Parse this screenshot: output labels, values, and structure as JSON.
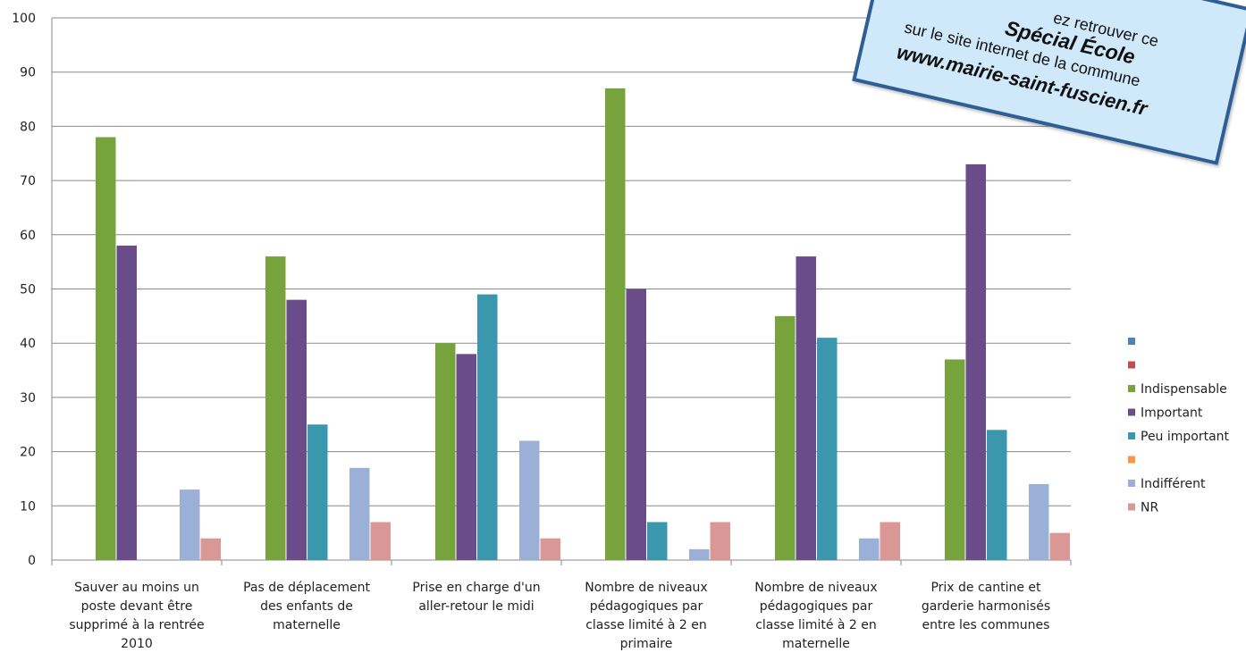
{
  "chart_data": {
    "type": "bar",
    "title": "",
    "xlabel": "",
    "ylabel": "",
    "ylim": [
      0,
      100
    ],
    "yticks": [
      0,
      10,
      20,
      30,
      40,
      50,
      60,
      70,
      80,
      90,
      100
    ],
    "grid": true,
    "legend_position": "right",
    "categories": [
      [
        "Sauver au moins un",
        "poste devant être",
        "supprimé à la rentrée",
        "2010"
      ],
      [
        "Pas de déplacement",
        "des enfants de",
        "maternelle"
      ],
      [
        "Prise en charge d'un",
        "aller-retour le midi"
      ],
      [
        "Nombre de niveaux",
        "pédagogiques par",
        "classe limité à 2 en",
        "primaire"
      ],
      [
        "Nombre de niveaux",
        "pédagogiques par",
        "classe limité à 2 en",
        "maternelle"
      ],
      [
        "Prix de cantine et",
        "garderie harmonisés",
        "entre les communes"
      ]
    ],
    "series": [
      {
        "name": "",
        "color": "#4f81bd",
        "values": [
          0,
          0,
          0,
          0,
          0,
          0
        ]
      },
      {
        "name": "",
        "color": "#c0504d",
        "values": [
          0,
          0,
          0,
          0,
          0,
          0
        ]
      },
      {
        "name": "Indispensable",
        "color": "#77a33c",
        "values": [
          78,
          56,
          40,
          87,
          45,
          37
        ]
      },
      {
        "name": "Important",
        "color": "#6b4c8b",
        "values": [
          58,
          48,
          38,
          50,
          56,
          73
        ]
      },
      {
        "name": "Peu important",
        "color": "#3a97ad",
        "values": [
          0,
          25,
          49,
          7,
          41,
          24
        ]
      },
      {
        "name": "",
        "color": "#f79646",
        "values": [
          0,
          0,
          0,
          0,
          0,
          0
        ]
      },
      {
        "name": "Indifférent",
        "color": "#9bb0d6",
        "values": [
          13,
          17,
          22,
          2,
          4,
          14
        ]
      },
      {
        "name": "NR",
        "color": "#d99795",
        "values": [
          4,
          7,
          4,
          7,
          7,
          5
        ]
      }
    ]
  },
  "promo": {
    "line1": "ez retrouver ce",
    "line2": "Spécial École",
    "line3": "sur le site internet de la commune",
    "line4": "www.mairie-saint-fuscien.fr"
  }
}
